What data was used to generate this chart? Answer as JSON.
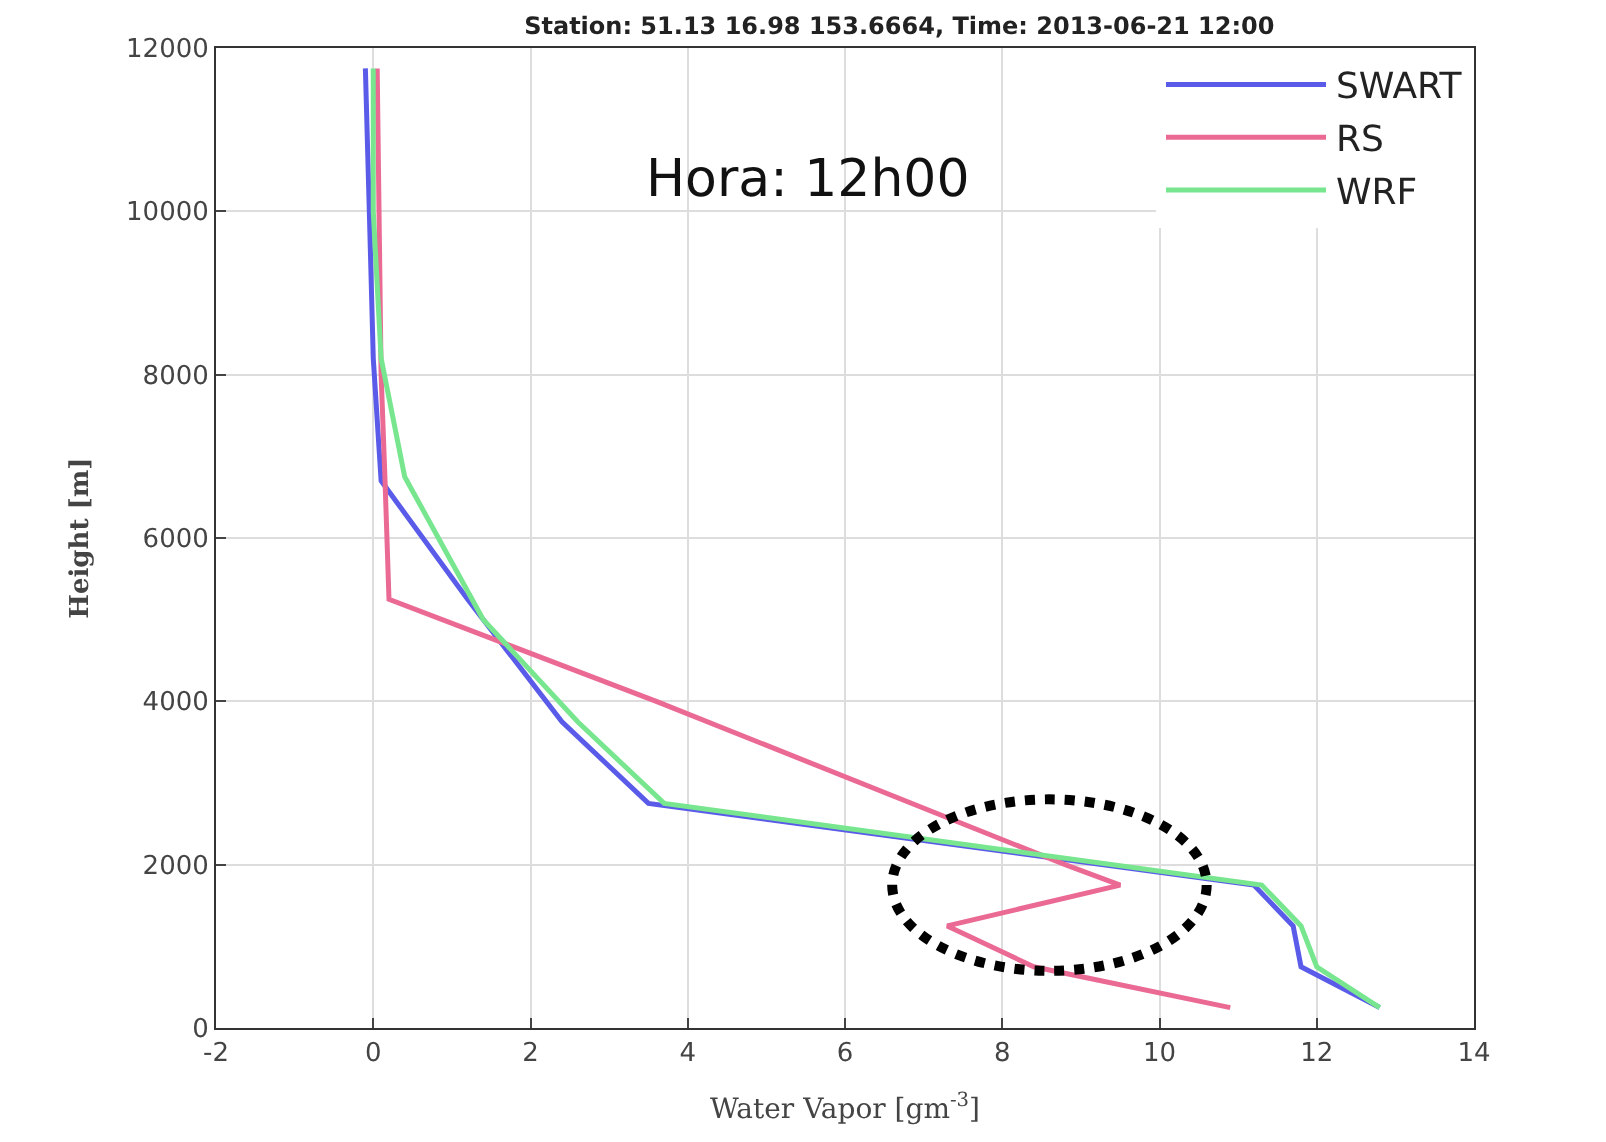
{
  "chart_data": {
    "type": "line",
    "title": "Station: 51.13 16.98 153.6664, Time: 2013-06-21 12:00",
    "xlabel": "Water Vapor [gm$^{-3}$]",
    "ylabel": "Height [m]",
    "annotations": [
      "Hora: 12h00"
    ],
    "xlim": [
      -2,
      14
    ],
    "xticks": [
      -2,
      0,
      2,
      4,
      6,
      8,
      10,
      12,
      14
    ],
    "ylim": [
      0,
      12000
    ],
    "yticks": [
      0,
      2000,
      4000,
      6000,
      8000,
      10000,
      12000
    ],
    "grid": true,
    "legend": "top right",
    "marker": "none",
    "line_style": "solid",
    "series": [
      {
        "name": "SWART",
        "color": "#5b5bea",
        "x": [
          12.8,
          11.8,
          11.7,
          11.2,
          3.5,
          2.4,
          1.2,
          0.1,
          0,
          -0.05,
          -0.1
        ],
        "values": [
          250,
          750,
          1250,
          1750,
          2750,
          3750,
          5250,
          6700,
          8200,
          10000,
          11750
        ]
      },
      {
        "name": "RS",
        "color": "#ea6a94",
        "x": [
          10.9,
          8.4,
          7.3,
          9.5,
          8.8,
          3.6,
          0.2,
          0.15,
          0.1,
          0.05
        ],
        "values": [
          250,
          750,
          1250,
          1750,
          2000,
          4000,
          5250,
          6700,
          8000,
          11750
        ]
      },
      {
        "name": "WRF",
        "color": "#77e68f",
        "x": [
          12.8,
          12.0,
          11.8,
          11.3,
          3.7,
          2.6,
          1.4,
          0.4,
          0.1,
          0,
          0
        ],
        "values": [
          250,
          750,
          1250,
          1750,
          2750,
          3750,
          5000,
          6750,
          8200,
          10000,
          11750
        ]
      }
    ]
  }
}
